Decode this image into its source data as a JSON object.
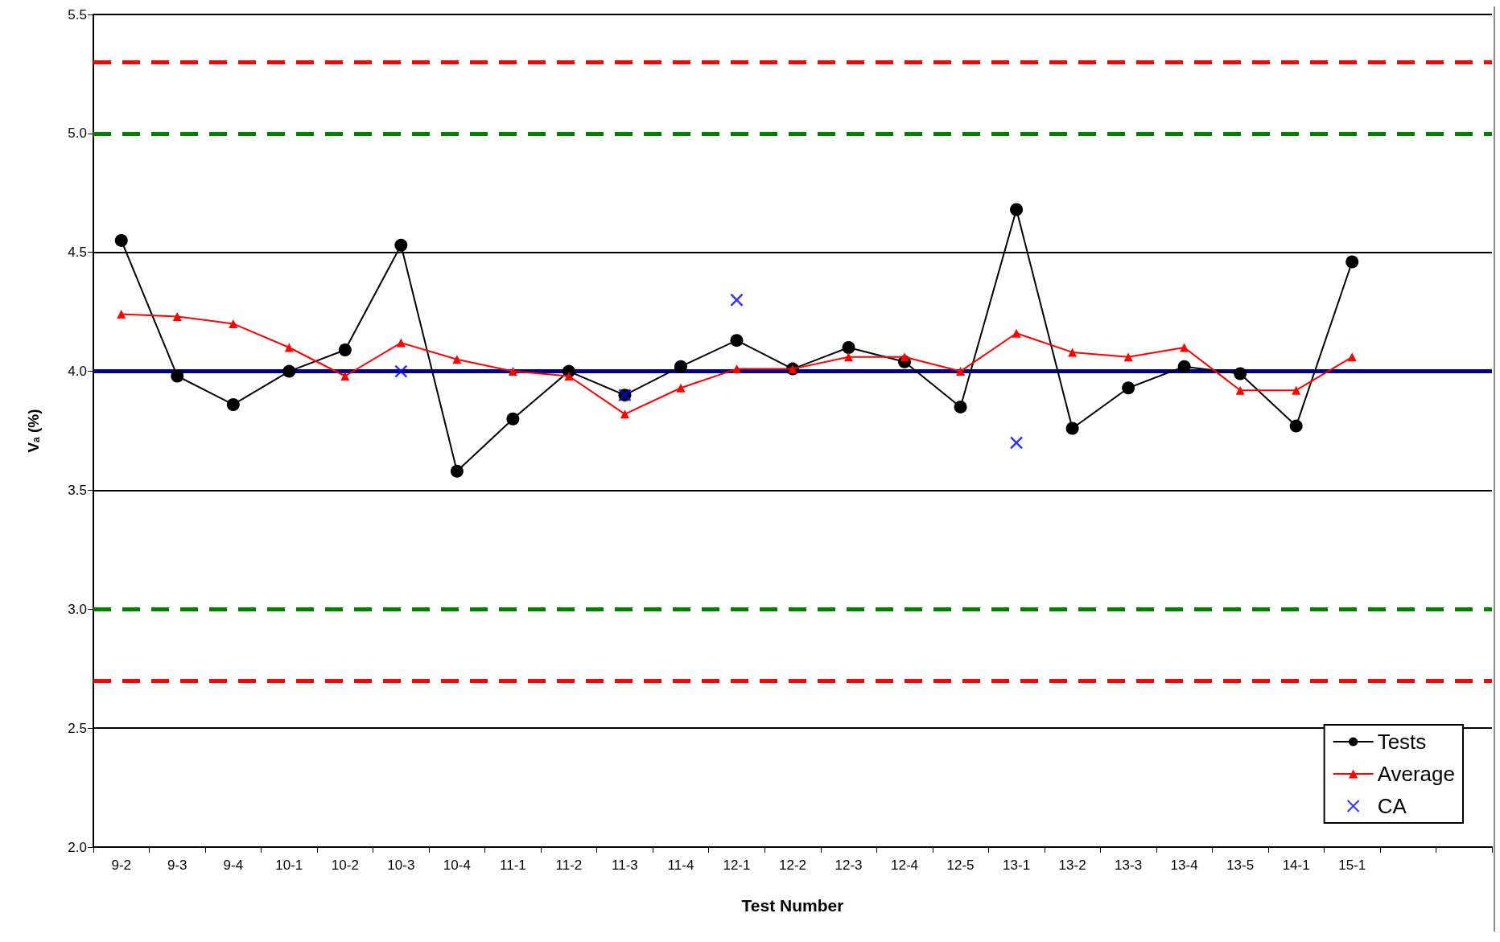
{
  "chart_data": {
    "type": "line",
    "xlabel": "Test Number",
    "ylabel": "V$_{a}$ (%)",
    "categories": [
      "9-2",
      "9-3",
      "9-4",
      "10-1",
      "10-2",
      "10-3",
      "10-4",
      "11-1",
      "11-2",
      "11-3",
      "11-4",
      "12-1",
      "12-2",
      "12-3",
      "12-4",
      "12-5",
      "13-1",
      "13-2",
      "13-3",
      "13-4",
      "13-5",
      "14-1",
      "15-1",
      null,
      null
    ],
    "series": [
      {
        "name": "Tests",
        "color": "#000000",
        "marker": "circle",
        "values": [
          4.55,
          3.98,
          3.86,
          4.0,
          4.09,
          4.53,
          3.58,
          3.8,
          4.0,
          3.9,
          4.02,
          4.13,
          4.01,
          4.1,
          4.04,
          3.85,
          4.68,
          3.76,
          3.93,
          4.02,
          3.99,
          3.77,
          4.46,
          null,
          null
        ]
      },
      {
        "name": "Average",
        "color": "#ff0000",
        "marker": "triangle",
        "values": [
          4.24,
          4.23,
          4.2,
          4.1,
          3.98,
          4.12,
          4.05,
          4.0,
          3.98,
          3.82,
          3.93,
          4.01,
          4.01,
          4.06,
          4.06,
          4.0,
          4.16,
          4.08,
          4.06,
          4.1,
          3.92,
          3.92,
          4.06,
          null,
          null
        ]
      },
      {
        "name": "CA",
        "type": "scatter",
        "color": "#0000ff",
        "marker": "cross",
        "values": [
          null,
          null,
          null,
          null,
          null,
          4.0,
          null,
          null,
          null,
          3.9,
          null,
          4.3,
          null,
          null,
          null,
          null,
          3.7,
          null,
          null,
          null,
          null,
          null,
          null,
          null,
          null
        ]
      }
    ],
    "ylim": [
      2,
      5.5
    ],
    "yticks": [
      {
        "value": 2,
        "label": "2.0"
      },
      {
        "value": 2.5,
        "label": "2.5"
      },
      {
        "value": 3,
        "label": "3.0"
      },
      {
        "value": 3.5,
        "label": "3.5"
      },
      {
        "value": 4,
        "label": "4.0"
      },
      {
        "value": 4.5,
        "label": "4.5"
      },
      {
        "value": 5,
        "label": "5.0"
      },
      {
        "value": 5.5,
        "label": "5.5"
      }
    ],
    "ref_lines": [
      {
        "axis": "y",
        "value": 5.3,
        "color": "#ff0000",
        "line_style": "dashed"
      },
      {
        "axis": "y",
        "value": 5.0,
        "color": "#008000",
        "line_style": "dashed"
      },
      {
        "axis": "y",
        "value": 4.0,
        "color": "#000080",
        "line_style": "solid"
      },
      {
        "axis": "y",
        "value": 3.0,
        "color": "#008000",
        "line_style": "dashed"
      },
      {
        "axis": "y",
        "value": 2.7,
        "color": "#ff0000",
        "line_style": "dashed"
      }
    ],
    "grid": "y",
    "legend": "bottom right"
  }
}
